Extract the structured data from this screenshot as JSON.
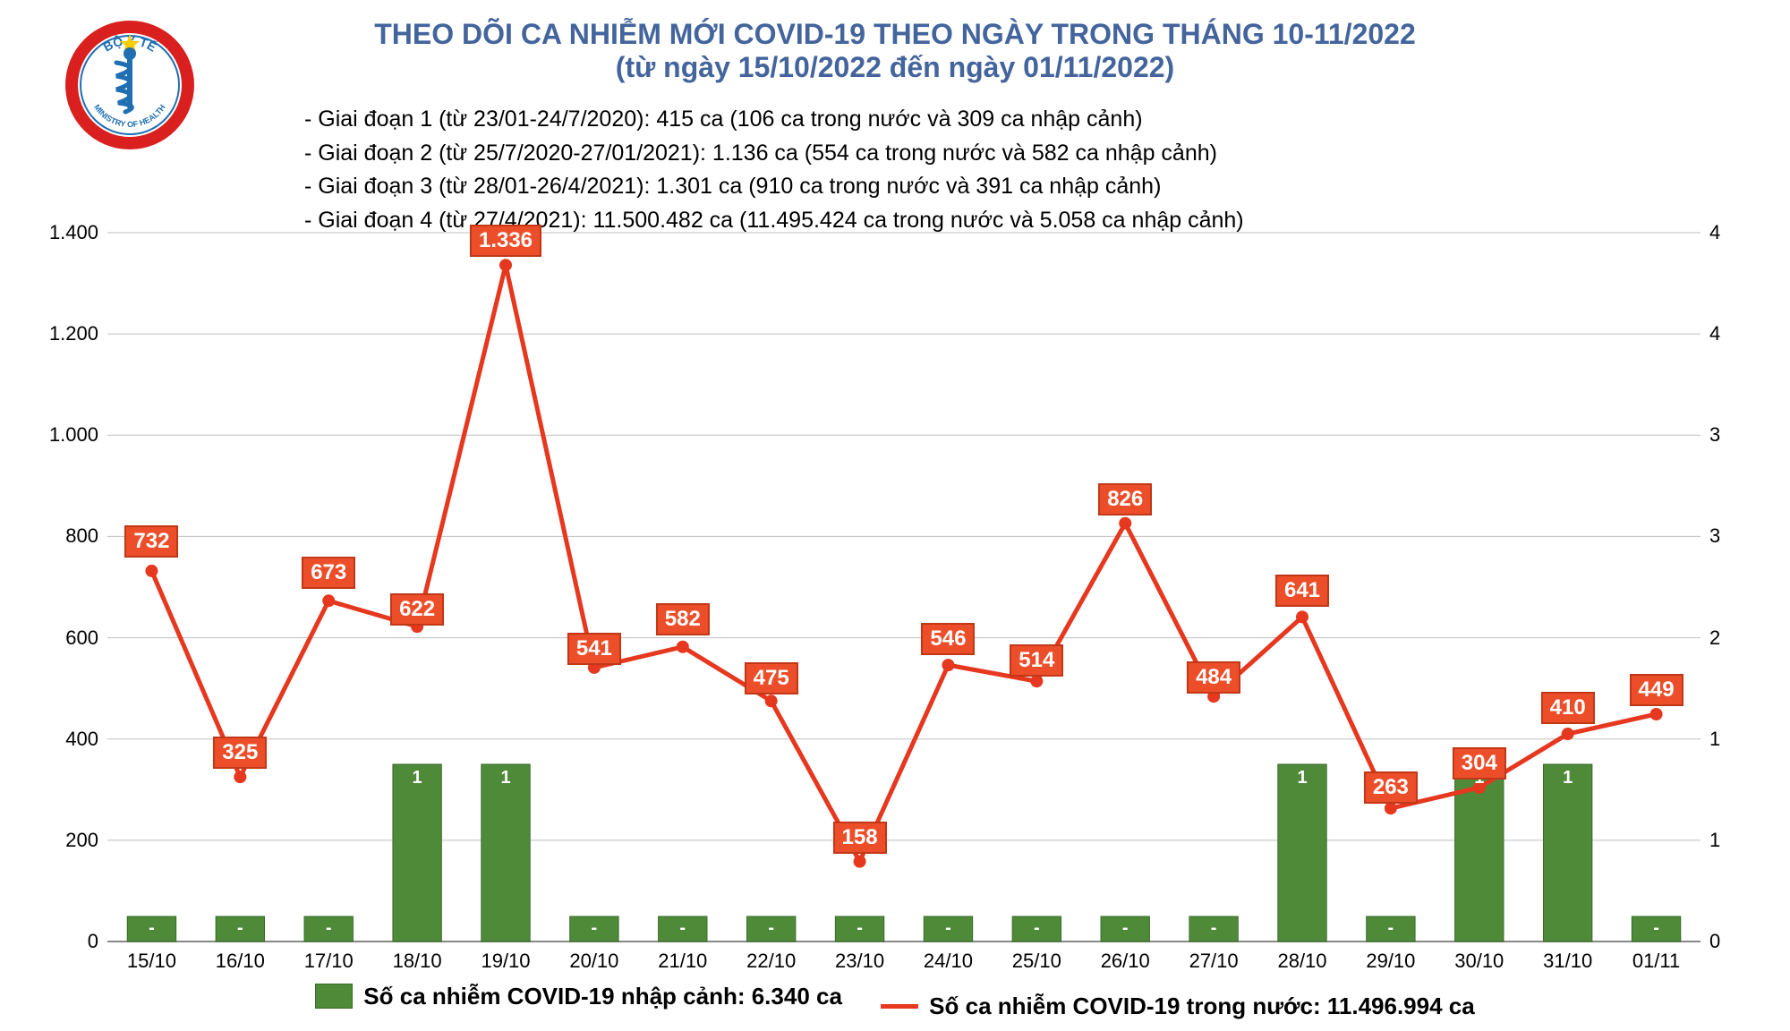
{
  "title": {
    "line1": "THEO DÕI CA NHIỄM MỚI COVID-19 THEO NGÀY TRONG THÁNG 10-11/2022",
    "line2": "(từ ngày 15/10/2022 đến ngày 01/11/2022)",
    "color": "#43649c",
    "fontsize_line1": 32,
    "fontsize_line2": 32
  },
  "stages": {
    "lines": [
      "- Giai đoạn 1 (từ 23/01-24/7/2020): 415 ca (106 ca trong nước và 309 ca nhập cảnh)",
      "- Giai đoạn 2 (từ 25/7/2020-27/01/2021): 1.136 ca (554 ca trong nước và 582 ca nhập cảnh)",
      "- Giai đoạn 3 (từ 28/01-26/4/2021): 1.301 ca (910 ca trong nước và 391 ca nhập cảnh)",
      "- Giai đoạn 4 (từ 27/4/2021): 11.500.482 ca (11.495.424 ca trong nước và 5.058 ca nhập cảnh)"
    ],
    "fontsize": 25,
    "color": "#000000"
  },
  "chart": {
    "type": "combo-bar-line",
    "categories": [
      "15/10",
      "16/10",
      "17/10",
      "18/10",
      "19/10",
      "20/10",
      "21/10",
      "22/10",
      "23/10",
      "24/10",
      "25/10",
      "26/10",
      "27/10",
      "28/10",
      "29/10",
      "30/10",
      "31/10",
      "01/11"
    ],
    "line_series": {
      "name": "Số ca nhiễm COVID-19 trong nước",
      "values": [
        732,
        325,
        673,
        622,
        1336,
        541,
        582,
        475,
        158,
        546,
        514,
        826,
        484,
        641,
        263,
        304,
        410,
        449
      ],
      "labels": [
        "732",
        "325",
        "673",
        "622",
        "1.336",
        "541",
        "582",
        "475",
        "158",
        "546",
        "514",
        "826",
        "484",
        "641",
        "263",
        "304",
        "410",
        "449"
      ],
      "color": "#e6371f",
      "marker_color": "#e6371f",
      "line_width": 5,
      "marker_size": 7,
      "label_bg": "#ed4e2a",
      "label_border": "#c03817",
      "label_text_color": "#ffffff"
    },
    "bar_series": {
      "name": "Số ca nhiễm COVID-19 nhập cảnh",
      "values": [
        0,
        0,
        0,
        1,
        1,
        0,
        0,
        0,
        0,
        0,
        0,
        0,
        0,
        1,
        0,
        1,
        1,
        0
      ],
      "labels": [
        "-",
        "-",
        "-",
        "1",
        "1",
        "-",
        "-",
        "-",
        "-",
        "-",
        "-",
        "-",
        "-",
        "1",
        "-",
        "1",
        "1",
        "-"
      ],
      "color": "#4f8a39",
      "border_color": "#3a6b29",
      "bar_width_ratio": 0.55
    },
    "y_axis_left": {
      "min": 0,
      "max": 1400,
      "tick_step": 200,
      "tick_labels": [
        "0",
        "200",
        "400",
        "600",
        "800",
        "1.000",
        "1.200",
        "1.400"
      ],
      "fontsize": 22
    },
    "y_axis_right": {
      "min": 0,
      "max": 4,
      "tick_step": 1,
      "tick_labels": [
        "0",
        "1",
        "1",
        "2",
        "3",
        "3",
        "4",
        "4"
      ],
      "fontsize": 22
    },
    "gridline_color": "#bfbfbf",
    "baseline_color": "#888888",
    "background_color": "#ffffff"
  },
  "legend": {
    "bar_text": "Số ca nhiễm COVID-19 nhập cảnh: 6.340 ca",
    "line_text": "Số ca nhiễm COVID-19 trong nước: 11.496.994 ca",
    "fontsize": 26
  },
  "logo": {
    "outer_text_top": "BỘ Y TẾ",
    "outer_text_bottom": "MINISTRY OF HEALTH",
    "circle_color": "#1f6fb2",
    "flag_bg": "#da1f1f",
    "star_color": "#ffce00"
  }
}
